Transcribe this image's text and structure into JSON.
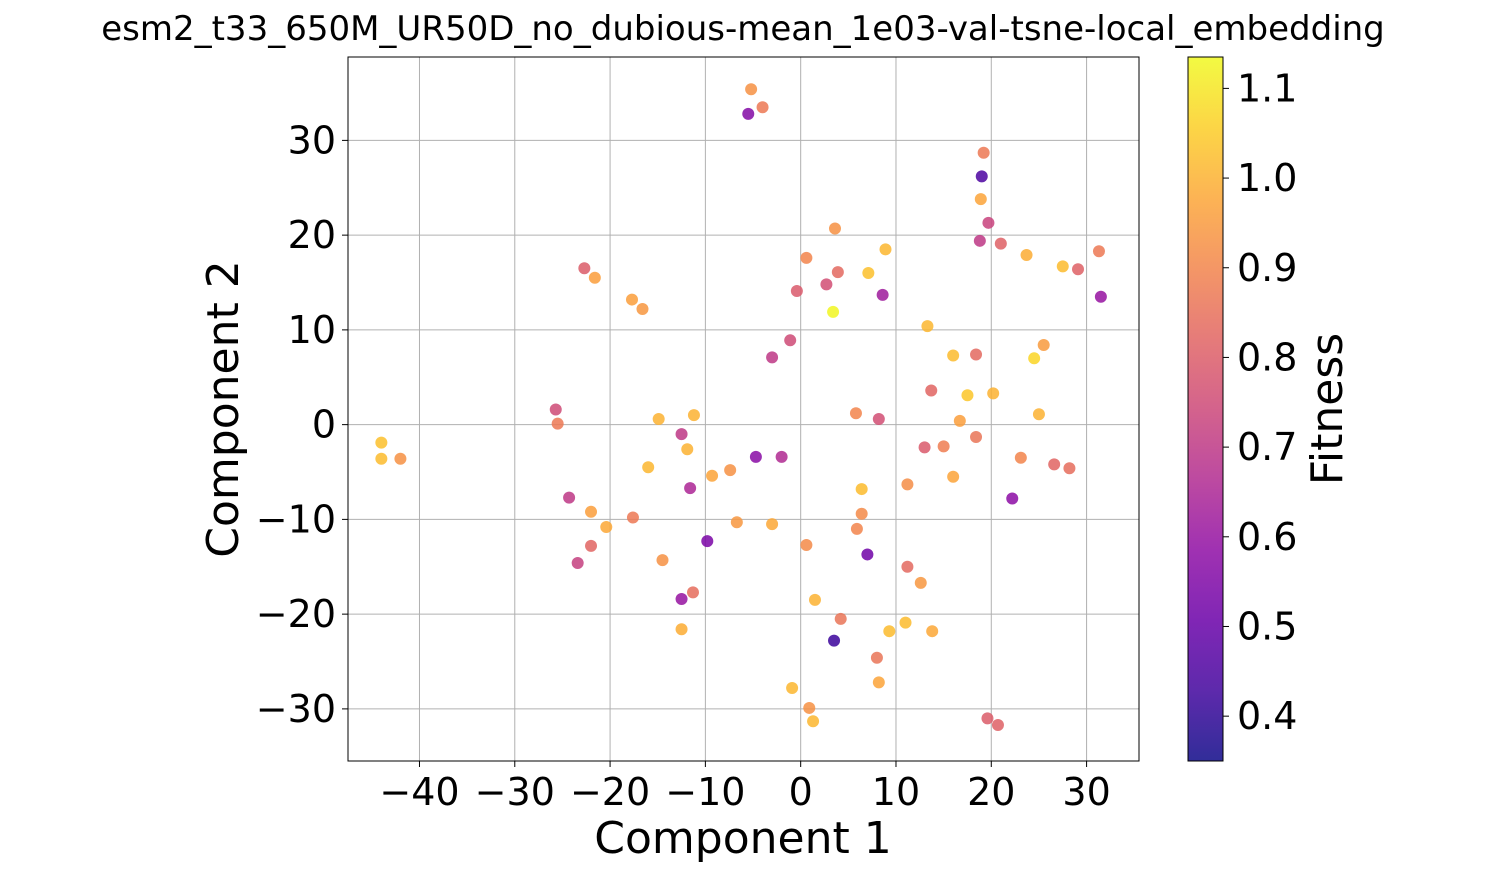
{
  "chart_data": {
    "type": "scatter",
    "title": "esm2_t33_650M_UR50D_no_dubious-mean_1e03-val-tsne-local_embedding",
    "xlabel": "Component 1",
    "ylabel": "Component 2",
    "xlim": [
      -47.5,
      35.5
    ],
    "ylim": [
      -35.5,
      38.8
    ],
    "xticks": [
      -40,
      -30,
      -20,
      -10,
      0,
      10,
      20,
      30
    ],
    "yticks": [
      -30,
      -20,
      -10,
      0,
      10,
      20,
      30
    ],
    "xtick_labels": [
      "−40",
      "−30",
      "−20",
      "−10",
      "0",
      "10",
      "20",
      "30"
    ],
    "ytick_labels": [
      "−30",
      "−20",
      "−10",
      "0",
      "10",
      "20",
      "30"
    ],
    "grid": true,
    "colormap": "plasma",
    "colorbar": {
      "label": "Fitness",
      "range": [
        0.35,
        1.135
      ],
      "ticks": [
        0.4,
        0.5,
        0.6,
        0.7,
        0.8,
        0.9,
        1.0,
        1.1
      ],
      "tick_labels": [
        "0.4",
        "0.5",
        "0.6",
        "0.7",
        "0.8",
        "0.9",
        "1.0",
        "1.1"
      ]
    },
    "points": [
      {
        "x": -5.2,
        "y": 35.4,
        "c": 0.93
      },
      {
        "x": -4.0,
        "y": 33.5,
        "c": 0.87
      },
      {
        "x": -5.5,
        "y": 32.8,
        "c": 0.56
      },
      {
        "x": 19.2,
        "y": 28.7,
        "c": 0.87
      },
      {
        "x": 19.0,
        "y": 26.2,
        "c": 0.45
      },
      {
        "x": 18.9,
        "y": 23.8,
        "c": 0.97
      },
      {
        "x": 19.7,
        "y": 21.3,
        "c": 0.73
      },
      {
        "x": 3.6,
        "y": 20.7,
        "c": 0.93
      },
      {
        "x": 21.0,
        "y": 19.1,
        "c": 0.81
      },
      {
        "x": 18.8,
        "y": 19.4,
        "c": 0.7
      },
      {
        "x": 8.9,
        "y": 18.5,
        "c": 1.01
      },
      {
        "x": 31.3,
        "y": 18.3,
        "c": 0.87
      },
      {
        "x": 23.7,
        "y": 17.9,
        "c": 0.99
      },
      {
        "x": 0.6,
        "y": 17.6,
        "c": 0.9
      },
      {
        "x": 27.5,
        "y": 16.7,
        "c": 1.02
      },
      {
        "x": -22.7,
        "y": 16.5,
        "c": 0.8
      },
      {
        "x": 29.1,
        "y": 16.4,
        "c": 0.81
      },
      {
        "x": 3.9,
        "y": 16.1,
        "c": 0.83
      },
      {
        "x": 7.1,
        "y": 16.0,
        "c": 1.03
      },
      {
        "x": -21.6,
        "y": 15.5,
        "c": 0.96
      },
      {
        "x": 2.7,
        "y": 14.8,
        "c": 0.76
      },
      {
        "x": -0.4,
        "y": 14.1,
        "c": 0.79
      },
      {
        "x": 8.6,
        "y": 13.7,
        "c": 0.62
      },
      {
        "x": 31.5,
        "y": 13.5,
        "c": 0.6
      },
      {
        "x": -17.7,
        "y": 13.2,
        "c": 0.96
      },
      {
        "x": -16.6,
        "y": 12.2,
        "c": 0.94
      },
      {
        "x": 3.4,
        "y": 11.9,
        "c": 1.13
      },
      {
        "x": 13.3,
        "y": 10.4,
        "c": 1.01
      },
      {
        "x": -1.1,
        "y": 8.9,
        "c": 0.75
      },
      {
        "x": 25.5,
        "y": 8.4,
        "c": 0.95
      },
      {
        "x": 16.0,
        "y": 7.3,
        "c": 1.02
      },
      {
        "x": 18.4,
        "y": 7.4,
        "c": 0.83
      },
      {
        "x": -3.0,
        "y": 7.1,
        "c": 0.7
      },
      {
        "x": 24.5,
        "y": 7.0,
        "c": 1.07
      },
      {
        "x": 13.7,
        "y": 3.6,
        "c": 0.82
      },
      {
        "x": 20.2,
        "y": 3.3,
        "c": 1.0
      },
      {
        "x": 17.5,
        "y": 3.1,
        "c": 1.04
      },
      {
        "x": -25.7,
        "y": 1.6,
        "c": 0.75
      },
      {
        "x": 5.8,
        "y": 1.2,
        "c": 0.9
      },
      {
        "x": 25.0,
        "y": 1.1,
        "c": 1.0
      },
      {
        "x": -11.2,
        "y": 1.0,
        "c": 1.0
      },
      {
        "x": -14.9,
        "y": 0.6,
        "c": 1.0
      },
      {
        "x": 8.2,
        "y": 0.6,
        "c": 0.76
      },
      {
        "x": 16.7,
        "y": 0.4,
        "c": 0.96
      },
      {
        "x": -25.5,
        "y": 0.1,
        "c": 0.87
      },
      {
        "x": -12.5,
        "y": -1.0,
        "c": 0.7
      },
      {
        "x": 18.4,
        "y": -1.3,
        "c": 0.86
      },
      {
        "x": -44.0,
        "y": -1.9,
        "c": 1.03
      },
      {
        "x": 15.0,
        "y": -2.3,
        "c": 0.88
      },
      {
        "x": 13.0,
        "y": -2.4,
        "c": 0.79
      },
      {
        "x": -11.9,
        "y": -2.6,
        "c": 1.0
      },
      {
        "x": -4.7,
        "y": -3.4,
        "c": 0.57
      },
      {
        "x": -2.0,
        "y": -3.4,
        "c": 0.66
      },
      {
        "x": 23.1,
        "y": -3.5,
        "c": 0.9
      },
      {
        "x": -44.0,
        "y": -3.6,
        "c": 1.02
      },
      {
        "x": -42.0,
        "y": -3.6,
        "c": 0.93
      },
      {
        "x": 26.6,
        "y": -4.2,
        "c": 0.82
      },
      {
        "x": -16.0,
        "y": -4.5,
        "c": 1.01
      },
      {
        "x": 28.2,
        "y": -4.6,
        "c": 0.84
      },
      {
        "x": -7.4,
        "y": -4.8,
        "c": 0.93
      },
      {
        "x": -9.3,
        "y": -5.4,
        "c": 0.97
      },
      {
        "x": 16.0,
        "y": -5.5,
        "c": 0.97
      },
      {
        "x": 11.2,
        "y": -6.3,
        "c": 0.92
      },
      {
        "x": -11.6,
        "y": -6.7,
        "c": 0.65
      },
      {
        "x": 6.4,
        "y": -6.8,
        "c": 1.02
      },
      {
        "x": -24.3,
        "y": -7.7,
        "c": 0.7
      },
      {
        "x": 22.2,
        "y": -7.8,
        "c": 0.58
      },
      {
        "x": -22.0,
        "y": -9.2,
        "c": 0.96
      },
      {
        "x": 6.4,
        "y": -9.4,
        "c": 0.91
      },
      {
        "x": -17.6,
        "y": -9.8,
        "c": 0.87
      },
      {
        "x": -6.7,
        "y": -10.3,
        "c": 0.94
      },
      {
        "x": -3.0,
        "y": -10.5,
        "c": 0.98
      },
      {
        "x": -20.4,
        "y": -10.8,
        "c": 0.98
      },
      {
        "x": 5.9,
        "y": -11.0,
        "c": 0.9
      },
      {
        "x": -9.8,
        "y": -12.3,
        "c": 0.54
      },
      {
        "x": 0.6,
        "y": -12.7,
        "c": 0.91
      },
      {
        "x": -22.0,
        "y": -12.8,
        "c": 0.82
      },
      {
        "x": 7.0,
        "y": -13.7,
        "c": 0.52
      },
      {
        "x": -14.5,
        "y": -14.3,
        "c": 0.93
      },
      {
        "x": -23.4,
        "y": -14.6,
        "c": 0.72
      },
      {
        "x": 11.2,
        "y": -15.0,
        "c": 0.83
      },
      {
        "x": 12.6,
        "y": -16.7,
        "c": 0.94
      },
      {
        "x": -11.3,
        "y": -17.7,
        "c": 0.84
      },
      {
        "x": -12.5,
        "y": -18.4,
        "c": 0.6
      },
      {
        "x": 1.5,
        "y": -18.5,
        "c": 1.0
      },
      {
        "x": 4.2,
        "y": -20.5,
        "c": 0.86
      },
      {
        "x": 11.0,
        "y": -20.9,
        "c": 1.02
      },
      {
        "x": -12.5,
        "y": -21.6,
        "c": 0.99
      },
      {
        "x": 9.3,
        "y": -21.8,
        "c": 1.02
      },
      {
        "x": 13.8,
        "y": -21.8,
        "c": 0.98
      },
      {
        "x": 3.5,
        "y": -22.8,
        "c": 0.42
      },
      {
        "x": 8.0,
        "y": -24.6,
        "c": 0.86
      },
      {
        "x": 8.2,
        "y": -27.2,
        "c": 0.97
      },
      {
        "x": -0.9,
        "y": -27.8,
        "c": 1.01
      },
      {
        "x": 0.9,
        "y": -29.9,
        "c": 0.93
      },
      {
        "x": 19.6,
        "y": -31.0,
        "c": 0.8
      },
      {
        "x": 20.7,
        "y": -31.7,
        "c": 0.81
      },
      {
        "x": 1.3,
        "y": -31.3,
        "c": 1.01
      }
    ]
  }
}
